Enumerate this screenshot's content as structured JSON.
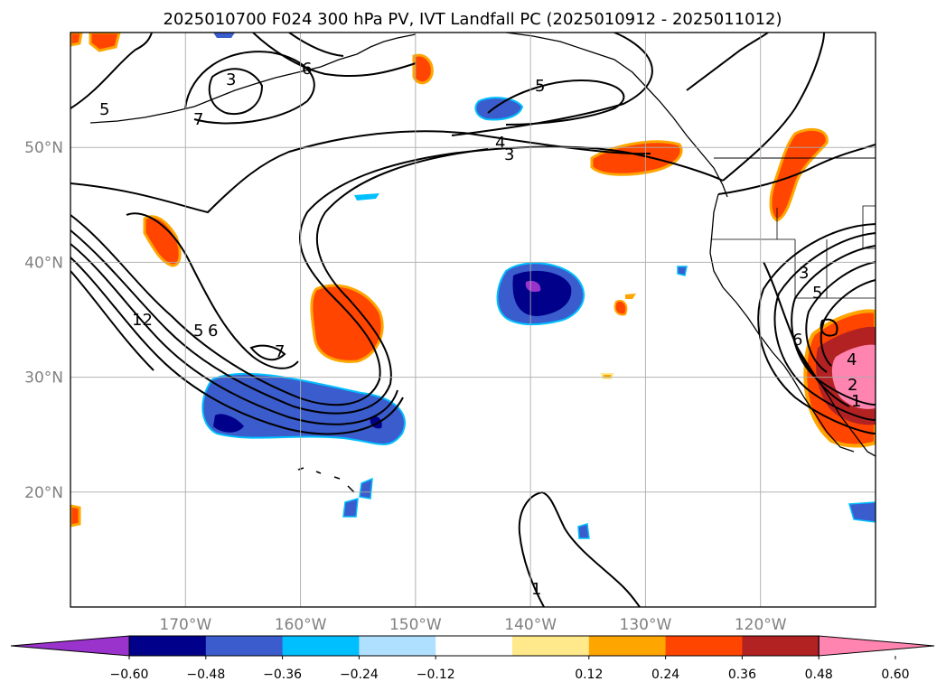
{
  "title": "2025010700 F024 300 hPa PV, IVT Landfall PC (2025010912 - 2025011012)",
  "map": {
    "lon_range": [
      -180,
      -110
    ],
    "lat_range": [
      10,
      60
    ],
    "lat_ticks": [
      "50°N",
      "40°N",
      "30°N",
      "20°N"
    ],
    "lon_ticks": [
      "170°W",
      "160°W",
      "150°W",
      "140°W",
      "130°W",
      "120°W"
    ],
    "gridlines": true,
    "contour_labels": [
      "5",
      "3",
      "7",
      "6",
      "5",
      "4",
      "3",
      "12",
      "5",
      "6",
      "7",
      "3",
      "5",
      "6",
      "4",
      "2",
      "1",
      "1"
    ]
  },
  "colorbar": {
    "tick_labels": [
      "−0.60",
      "−0.48",
      "−0.36",
      "−0.24",
      "−0.12",
      "0.12",
      "0.24",
      "0.36",
      "0.48",
      "0.60"
    ],
    "colors": [
      "#9933cc",
      "#00008b",
      "#3a5ccc",
      "#00bfff",
      "#b0e0ff",
      "#ffffff",
      "#ffe98a",
      "#ffa500",
      "#ff4500",
      "#b22222",
      "#ff85b0"
    ]
  }
}
